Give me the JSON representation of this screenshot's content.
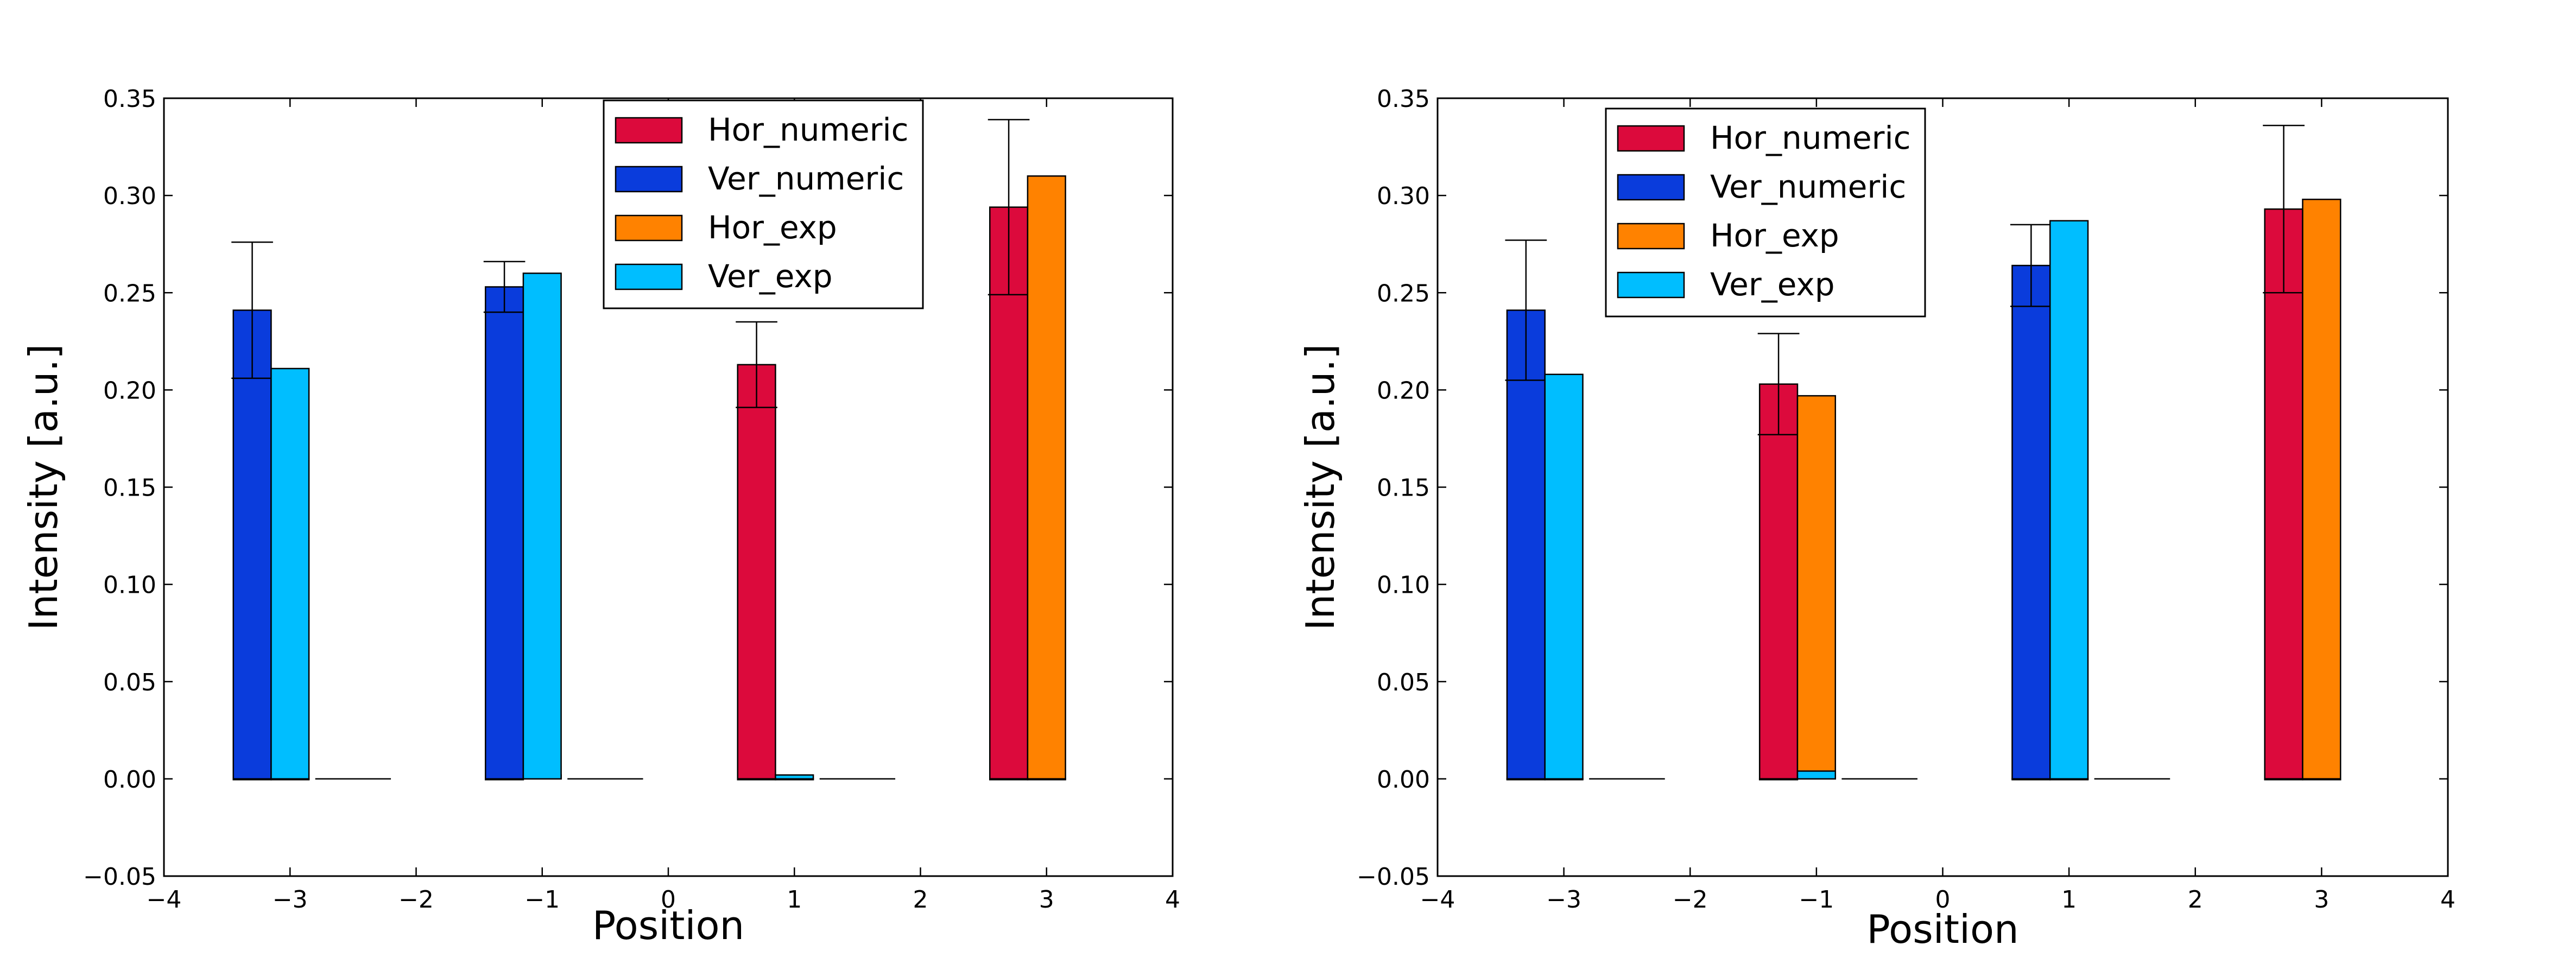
{
  "chart_data": [
    {
      "type": "bar",
      "title": "",
      "xlabel": "Position",
      "ylabel": "Intensity [a.u.]",
      "xlim": [
        -4,
        4
      ],
      "ylim": [
        -0.05,
        0.35
      ],
      "xticks": [
        -4,
        -3,
        -2,
        -1,
        0,
        1,
        2,
        3,
        4
      ],
      "xtick_labels": [
        "−4",
        "−3",
        "−2",
        "−1",
        "0",
        "1",
        "2",
        "3",
        "4"
      ],
      "yticks": [
        -0.05,
        0.0,
        0.05,
        0.1,
        0.15,
        0.2,
        0.25,
        0.3,
        0.35
      ],
      "ytick_labels": [
        "−0.05",
        "0.00",
        "0.05",
        "0.10",
        "0.15",
        "0.20",
        "0.25",
        "0.30",
        "0.35"
      ],
      "grid": false,
      "legend_position": "top-right",
      "bar_width": 0.3,
      "categories": [
        -3,
        -1,
        1,
        3
      ],
      "series": [
        {
          "name": "Hor_numeric",
          "color": "#dc0a3c",
          "offset": -0.3,
          "values": [
            0.0,
            0.0,
            0.213,
            0.294
          ],
          "errors": [
            0,
            0,
            0.022,
            0.045
          ]
        },
        {
          "name": "Ver_numeric",
          "color": "#0a3cdc",
          "offset": -0.3,
          "values": [
            0.241,
            0.253,
            0.0,
            0.0
          ],
          "errors": [
            0.035,
            0.013,
            0,
            0
          ]
        },
        {
          "name": "Hor_exp",
          "color": "#ff8200",
          "offset": 0.0,
          "values": [
            0.0,
            0.002,
            0.0,
            0.31
          ],
          "errors": [
            0,
            0,
            0,
            0
          ]
        },
        {
          "name": "Ver_exp",
          "color": "#00beff",
          "offset": 0.0,
          "values": [
            0.211,
            0.26,
            0.002,
            0.0
          ],
          "errors": [
            0,
            0,
            0,
            0
          ]
        }
      ],
      "placeholders": [
        -2.5,
        -0.5,
        1.5
      ]
    },
    {
      "type": "bar",
      "title": "",
      "xlabel": "Position",
      "ylabel": "Intensity [a.u.]",
      "xlim": [
        -4,
        4
      ],
      "ylim": [
        -0.05,
        0.35
      ],
      "xticks": [
        -4,
        -3,
        -2,
        -1,
        0,
        1,
        2,
        3,
        4
      ],
      "xtick_labels": [
        "−4",
        "−3",
        "−2",
        "−1",
        "0",
        "1",
        "2",
        "3",
        "4"
      ],
      "yticks": [
        -0.05,
        0.0,
        0.05,
        0.1,
        0.15,
        0.2,
        0.25,
        0.3,
        0.35
      ],
      "ytick_labels": [
        "−0.05",
        "0.00",
        "0.05",
        "0.10",
        "0.15",
        "0.20",
        "0.25",
        "0.30",
        "0.35"
      ],
      "grid": false,
      "legend_position": "top-left",
      "bar_width": 0.3,
      "categories": [
        -3,
        -1,
        1,
        3
      ],
      "series": [
        {
          "name": "Hor_numeric",
          "color": "#dc0a3c",
          "offset": -0.3,
          "values": [
            0.0,
            0.203,
            0.0,
            0.293
          ],
          "errors": [
            0,
            0.026,
            0,
            0.043
          ]
        },
        {
          "name": "Ver_numeric",
          "color": "#0a3cdc",
          "offset": -0.3,
          "values": [
            0.241,
            0.0,
            0.264,
            0.0
          ],
          "errors": [
            0.036,
            0,
            0.021,
            0
          ]
        },
        {
          "name": "Hor_exp",
          "color": "#ff8200",
          "offset": 0.0,
          "values": [
            0.0,
            0.197,
            0.0,
            0.298
          ],
          "errors": [
            0,
            0,
            0,
            0
          ]
        },
        {
          "name": "Ver_exp",
          "color": "#00beff",
          "offset": 0.0,
          "values": [
            0.208,
            0.004,
            0.287,
            0.0
          ],
          "errors": [
            0,
            0,
            0,
            0
          ]
        }
      ],
      "placeholders": [
        -2.5,
        -0.5,
        1.5
      ]
    }
  ]
}
